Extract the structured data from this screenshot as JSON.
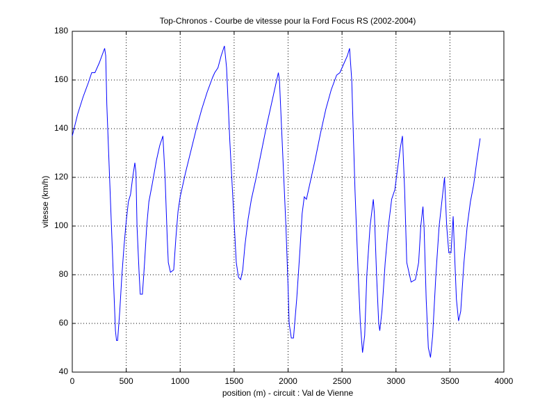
{
  "chart_data": {
    "type": "line",
    "title": "Top-Chronos - Courbe de vitesse pour la Ford Focus RS (2002-2004)",
    "x_label": "position (m) - circuit : Val de Vienne",
    "y_label": "vitesse (km/h)",
    "x": [
      0,
      50,
      100,
      150,
      180,
      210,
      250,
      300,
      310,
      320,
      350,
      380,
      400,
      410,
      420,
      440,
      460,
      480,
      500,
      520,
      540,
      560,
      580,
      590,
      600,
      620,
      630,
      650,
      670,
      690,
      710,
      740,
      780,
      810,
      840,
      860,
      880,
      890,
      910,
      940,
      960,
      980,
      1000,
      1050,
      1100,
      1150,
      1200,
      1250,
      1300,
      1320,
      1350,
      1380,
      1410,
      1430,
      1460,
      1490,
      1520,
      1540,
      1560,
      1580,
      1600,
      1630,
      1660,
      1700,
      1750,
      1800,
      1850,
      1880,
      1900,
      1910,
      1920,
      1950,
      1980,
      2000,
      2010,
      2030,
      2050,
      2080,
      2110,
      2130,
      2150,
      2170,
      2200,
      2250,
      2300,
      2350,
      2400,
      2450,
      2480,
      2510,
      2550,
      2570,
      2590,
      2620,
      2650,
      2670,
      2690,
      2710,
      2730,
      2760,
      2790,
      2800,
      2820,
      2840,
      2850,
      2870,
      2900,
      2930,
      2960,
      2990,
      3010,
      3040,
      3060,
      3080,
      3100,
      3140,
      3180,
      3210,
      3230,
      3250,
      3260,
      3280,
      3300,
      3320,
      3340,
      3370,
      3400,
      3430,
      3450,
      3470,
      3490,
      3510,
      3530,
      3540,
      3560,
      3580,
      3600,
      3630,
      3660,
      3690,
      3720,
      3750,
      3780
    ],
    "series": [
      {
        "name": "vitesse",
        "color": "#0000ff",
        "values": [
          137,
          146,
          153,
          159,
          163,
          163,
          167,
          173,
          170,
          150,
          115,
          80,
          57,
          53,
          53,
          65,
          80,
          92,
          102,
          110,
          113,
          120,
          126,
          122,
          100,
          80,
          72,
          72,
          85,
          100,
          110,
          117,
          127,
          133,
          137,
          120,
          95,
          85,
          81,
          82,
          95,
          106,
          112,
          122,
          131,
          140,
          148,
          155,
          161,
          163,
          165,
          170,
          174,
          165,
          135,
          110,
          85,
          79,
          78,
          82,
          92,
          103,
          111,
          119,
          130,
          141,
          151,
          157,
          161,
          163,
          160,
          130,
          100,
          75,
          60,
          54,
          54,
          70,
          90,
          105,
          112,
          111,
          117,
          127,
          138,
          148,
          156,
          162,
          163,
          166,
          170,
          173,
          160,
          115,
          80,
          60,
          48,
          55,
          80,
          100,
          111,
          105,
          80,
          60,
          57,
          65,
          85,
          100,
          111,
          115,
          122,
          132,
          137,
          115,
          85,
          77,
          78,
          85,
          100,
          108,
          100,
          70,
          50,
          46,
          55,
          80,
          100,
          112,
          120,
          100,
          89,
          89,
          104,
          92,
          70,
          61,
          65,
          85,
          100,
          110,
          117,
          127,
          136
        ]
      }
    ],
    "xlim": [
      0,
      4000
    ],
    "xticks": [
      0,
      500,
      1000,
      1500,
      2000,
      2500,
      3000,
      3500,
      4000
    ],
    "ylim": [
      40,
      180
    ],
    "yticks": [
      40,
      60,
      80,
      100,
      120,
      140,
      160,
      180
    ],
    "grid": true
  }
}
